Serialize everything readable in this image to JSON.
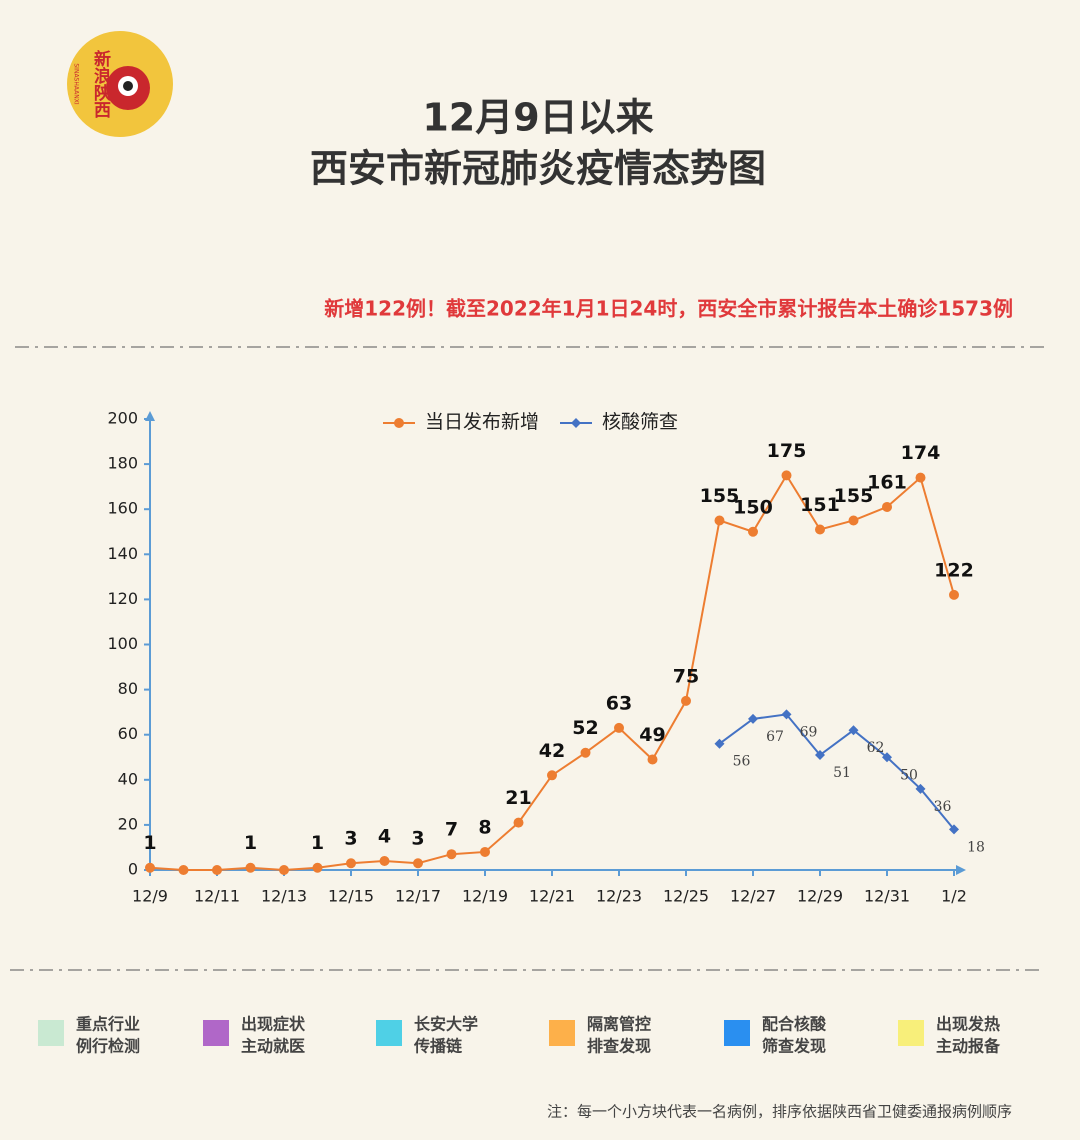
{
  "logo": {
    "text": "新浪陕西",
    "sub": "SINASHAANXI"
  },
  "header": {
    "title": [
      "12月9日以来",
      "西安市新冠肺炎疫情态势图"
    ],
    "subtitle": "新增122例！截至2022年1月1日24时，西安全市累计报告本土确诊1573例"
  },
  "chart_data": {
    "type": "line",
    "categories": [
      "12/9",
      null,
      "12/11",
      null,
      "12/13",
      null,
      "12/15",
      null,
      "12/17",
      null,
      "12/19",
      null,
      "12/21",
      null,
      "12/23",
      null,
      "12/25",
      null,
      "12/27",
      null,
      "12/29",
      null,
      "12/31",
      null,
      "1/2"
    ],
    "series": [
      {
        "name": "当日发布新增",
        "color": "#ed7d31",
        "marker": "circle",
        "values": [
          1,
          0,
          0,
          1,
          0,
          1,
          3,
          4,
          3,
          7,
          8,
          21,
          42,
          52,
          63,
          49,
          75,
          155,
          150,
          175,
          151,
          155,
          161,
          174,
          122
        ],
        "value_labels": [
          "1",
          null,
          null,
          "1",
          null,
          "1",
          "3",
          "4",
          "3",
          "7",
          "8",
          "21",
          "42",
          "52",
          "63",
          "49",
          "75",
          "155",
          "150",
          "175",
          "151",
          "155",
          "161",
          "174",
          "122"
        ]
      },
      {
        "name": "核酸筛查",
        "color": "#4472c4",
        "marker": "diamond",
        "values": [
          null,
          null,
          null,
          null,
          null,
          null,
          null,
          null,
          null,
          null,
          null,
          null,
          null,
          null,
          null,
          null,
          null,
          56,
          67,
          69,
          51,
          62,
          50,
          36,
          18
        ],
        "value_labels": [
          null,
          null,
          null,
          null,
          null,
          null,
          null,
          null,
          null,
          null,
          null,
          null,
          null,
          null,
          null,
          null,
          null,
          "56",
          "67",
          "69",
          "51",
          "62",
          "50",
          "36",
          "18"
        ]
      }
    ],
    "ylim": [
      0,
      200
    ],
    "yticks": [
      0,
      20,
      40,
      60,
      80,
      100,
      120,
      140,
      160,
      180,
      200
    ],
    "axis_color": "#5b9bd5",
    "legend": "top"
  },
  "legend_boxes": [
    {
      "lines": [
        "重点行业",
        "例行检测"
      ],
      "color": "#c9e9d2"
    },
    {
      "lines": [
        "出现症状",
        "主动就医"
      ],
      "color": "#b067c8"
    },
    {
      "lines": [
        "长安大学",
        "传播链"
      ],
      "color": "#4fd0e6"
    },
    {
      "lines": [
        "隔离管控",
        "排查发现"
      ],
      "color": "#fdb04a"
    },
    {
      "lines": [
        "配合核酸",
        "筛查发现"
      ],
      "color": "#2a8ff0"
    },
    {
      "lines": [
        "出现发热",
        "主动报备"
      ],
      "color": "#f8ef7a"
    }
  ],
  "note": "注：每一个小方块代表一名病例，排序依据陕西省卫健委通报病例顺序"
}
